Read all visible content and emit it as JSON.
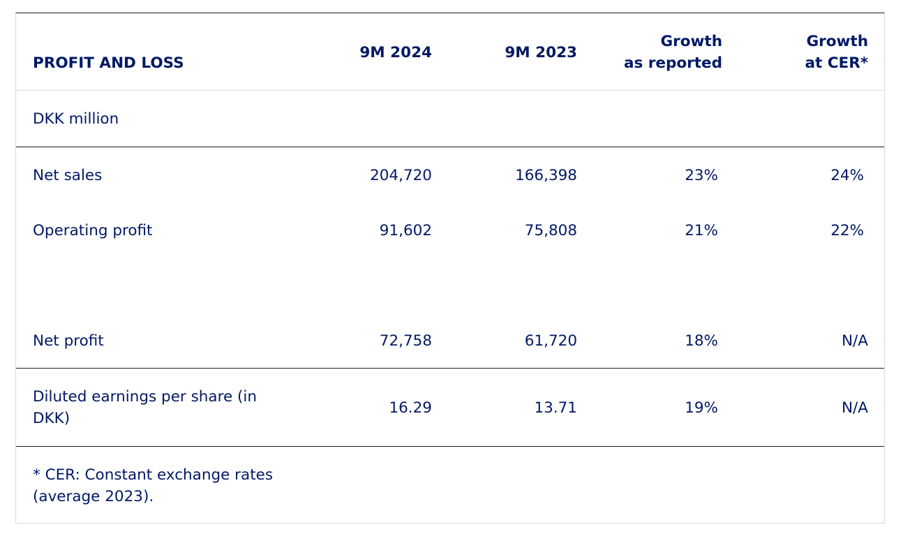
{
  "table": {
    "header": {
      "title": "PROFIT AND LOSS",
      "col1": "9M 2024",
      "col2": "9M 2023",
      "col3_line1": "Growth",
      "col3_line2": "as reported",
      "col4_line1": "Growth",
      "col4_line2": "at CER*"
    },
    "unit": "DKK million",
    "rows": [
      {
        "label": "Net sales",
        "v2024": "204,720",
        "v2023": "166,398",
        "growth_reported": "23%",
        "growth_cer": "24%"
      },
      {
        "label": "Operating profit",
        "v2024": "91,602",
        "v2023": "75,808",
        "growth_reported": "21%",
        "growth_cer": "22%"
      },
      {
        "label": "Net profit",
        "v2024": "72,758",
        "v2023": "61,720",
        "growth_reported": "18%",
        "growth_cer": "N/A"
      },
      {
        "label": "Diluted earnings per share (in DKK)",
        "v2024": "16.29",
        "v2023": "13.71",
        "growth_reported": "19%",
        "growth_cer": "N/A"
      }
    ],
    "footnote": "* CER: Constant exchange rates (average 2023)."
  }
}
